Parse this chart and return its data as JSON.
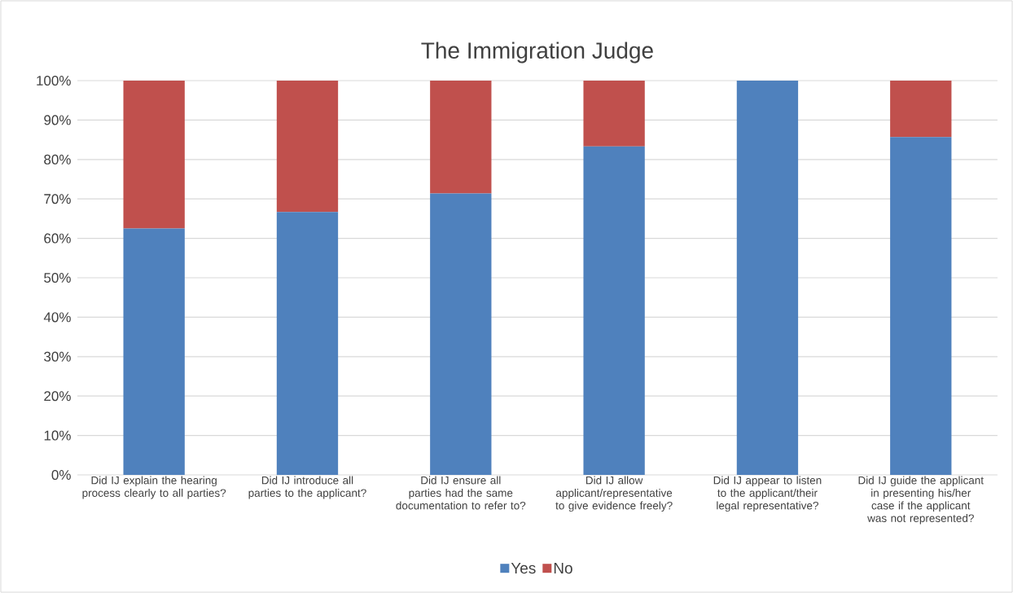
{
  "chart_data": {
    "type": "bar",
    "title": "The Immigration Judge",
    "stacked": true,
    "categories": [
      "Did IJ explain the hearing process clearly to all parties?",
      "Did IJ introduce all parties to the applicant?",
      "Did IJ ensure all parties had the same documentation to refer to?",
      "Did IJ allow applicant/representative to give evidence freely?",
      "Did IJ appear to listen to the applicant/their legal representative?",
      "Did IJ guide the applicant in presenting his/her case if the applicant was not represented?"
    ],
    "series": [
      {
        "name": "Yes",
        "color": "#4f81bd",
        "values": [
          62.5,
          66.7,
          71.4,
          83.3,
          100,
          85.7
        ]
      },
      {
        "name": "No",
        "color": "#c0504d",
        "values": [
          37.5,
          33.3,
          28.6,
          16.7,
          0,
          14.3
        ]
      }
    ],
    "ylim": [
      0,
      100
    ],
    "yticks": [
      {
        "value": 0,
        "label": "0%"
      },
      {
        "value": 10,
        "label": "10%"
      },
      {
        "value": 20,
        "label": "20%"
      },
      {
        "value": 30,
        "label": "30%"
      },
      {
        "value": 40,
        "label": "40%"
      },
      {
        "value": 50,
        "label": "50%"
      },
      {
        "value": 60,
        "label": "60%"
      },
      {
        "value": 70,
        "label": "70%"
      },
      {
        "value": 80,
        "label": "80%"
      },
      {
        "value": 90,
        "label": "90%"
      },
      {
        "value": 100,
        "label": "100%"
      }
    ],
    "grid": "y",
    "legend": "bottom"
  }
}
